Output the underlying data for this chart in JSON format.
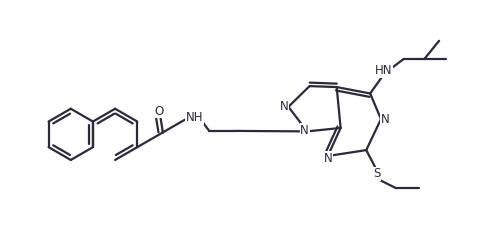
{
  "bg_color": "#ffffff",
  "line_color": "#2a2a3a",
  "line_width": 1.6,
  "font_size": 8.5,
  "figsize": [
    5.01,
    2.49
  ],
  "dpi": 100,
  "xlim": [
    0,
    10
  ],
  "ylim": [
    0,
    5
  ]
}
